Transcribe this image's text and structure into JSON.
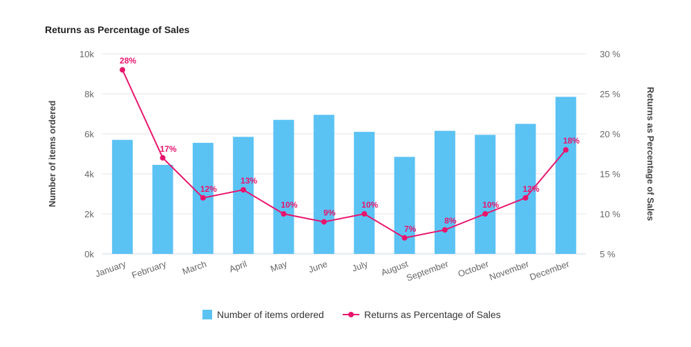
{
  "chart_data": {
    "type": "bar",
    "title": "Returns as Percentage of Sales",
    "categories": [
      "January",
      "February",
      "March",
      "April",
      "May",
      "June",
      "July",
      "August",
      "September",
      "October",
      "November",
      "December"
    ],
    "y_left": {
      "label": "Number of items ordered",
      "ylim": [
        0,
        10000
      ],
      "ticks": [
        0,
        2000,
        4000,
        6000,
        8000,
        10000
      ],
      "tick_labels": [
        "0k",
        "2k",
        "4k",
        "6k",
        "8k",
        "10k"
      ]
    },
    "y_right": {
      "label": "Returns as Percentage of Sales",
      "ylim": [
        5,
        30
      ],
      "ticks": [
        5,
        10,
        15,
        20,
        25,
        30
      ],
      "tick_labels": [
        "5 %",
        "10 %",
        "15 %",
        "20 %",
        "25 %",
        "30 %"
      ]
    },
    "series": [
      {
        "name": "Number of items ordered",
        "type": "bar",
        "axis": "left",
        "color": "#5BC2F4",
        "values": [
          5700,
          4450,
          5550,
          5850,
          6700,
          6950,
          6100,
          4850,
          6150,
          5950,
          6500,
          7850
        ]
      },
      {
        "name": "Returns as Percentage of Sales",
        "type": "line",
        "axis": "right",
        "color": "#E8156C",
        "values": [
          28,
          17,
          12,
          13,
          10,
          9,
          10,
          7,
          8,
          10,
          12,
          18
        ],
        "data_labels": [
          "28%",
          "17%",
          "12%",
          "13%",
          "10%",
          "9%",
          "10%",
          "7%",
          "8%",
          "10%",
          "12%",
          "18%"
        ]
      }
    ],
    "grid": true,
    "legend_position": "bottom-center"
  }
}
